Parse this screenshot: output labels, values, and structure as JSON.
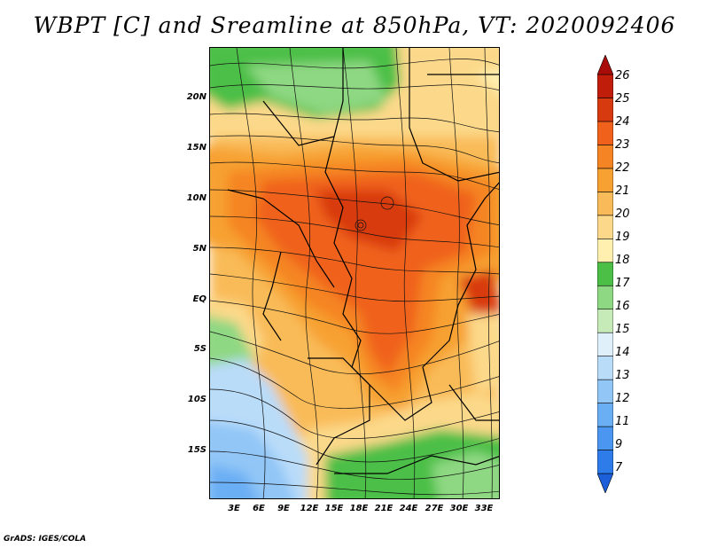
{
  "title": "WBPT [C] and Sreamline at 850hPa, VT: 2020092406",
  "credit": "GrADS: IGES/COLA",
  "map": {
    "variable": "Wet-bulb potential temperature",
    "units": "C",
    "level": "850hPa",
    "valid_time": "2020092406",
    "lat_labels": [
      "20N",
      "15N",
      "10N",
      "5N",
      "EQ",
      "5S",
      "10S",
      "15S"
    ],
    "lat_values": [
      20,
      15,
      10,
      5,
      0,
      -5,
      -10,
      -15
    ],
    "lon_labels": [
      "3E",
      "6E",
      "9E",
      "12E",
      "15E",
      "18E",
      "21E",
      "24E",
      "27E",
      "30E",
      "33E"
    ],
    "lon_values": [
      3,
      6,
      9,
      12,
      15,
      18,
      21,
      24,
      27,
      30,
      33
    ]
  },
  "colorbar": {
    "levels": [
      "7",
      "9",
      "11",
      "12",
      "13",
      "14",
      "15",
      "16",
      "17",
      "18",
      "19",
      "20",
      "21",
      "22",
      "23",
      "24",
      "25",
      "26"
    ],
    "colors": [
      "#1b5fd9",
      "#2e7cea",
      "#4a96f0",
      "#6aaef4",
      "#91c6f7",
      "#b9dcf9",
      "#dff0fb",
      "#c6ebb8",
      "#8fd883",
      "#4cbf47",
      "#fff0b0",
      "#fcd98a",
      "#f9bb59",
      "#f7a132",
      "#f58524",
      "#f0621c",
      "#d83a10",
      "#c01e0a",
      "#a80b08"
    ]
  }
}
